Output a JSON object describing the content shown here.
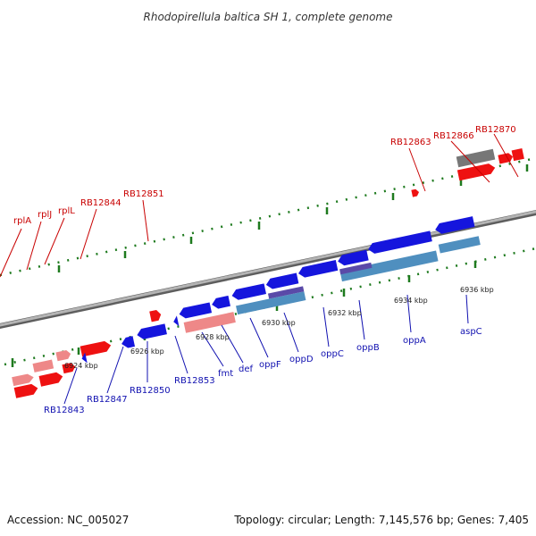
{
  "title": "Rhodopirellula baltica SH 1, complete genome",
  "footer": {
    "accession": "Accession: NC_005027",
    "topology": "Topology: circular; Length: 7,145,576 bp; Genes: 7,405"
  },
  "colors": {
    "backbone": "#8a8a8a",
    "ticks": "#1e7a1e",
    "top_label": "#c80000",
    "bottom_label": "#1010b0",
    "top_gene_red": "#ee1111",
    "top_gene_pink": "#ee8888",
    "top_gene_gray": "#666666",
    "bottom_gene_blue": "#1515dd",
    "bottom_gene_steel": "#4f8fbf",
    "bottom_gene_purple": "#5a4aa8",
    "bottom_gene_pink": "#ee8888"
  },
  "genes_top": [
    {
      "name": "rplA"
    },
    {
      "name": "rplJ"
    },
    {
      "name": "rplL"
    },
    {
      "name": "RB12844"
    },
    {
      "name": "RB12851"
    },
    {
      "name": "RB12863"
    },
    {
      "name": "RB12866"
    },
    {
      "name": "RB12870"
    }
  ],
  "genes_bottom": [
    {
      "name": "RB12843"
    },
    {
      "name": "RB12847"
    },
    {
      "name": "RB12850"
    },
    {
      "name": "RB12853"
    },
    {
      "name": "fmt"
    },
    {
      "name": "def"
    },
    {
      "name": "oppF"
    },
    {
      "name": "oppD"
    },
    {
      "name": "oppC"
    },
    {
      "name": "oppB"
    },
    {
      "name": "oppA"
    },
    {
      "name": "aspC"
    }
  ],
  "scale_ticks": [
    {
      "label": "6924 kbp"
    },
    {
      "label": "6926 kbp"
    },
    {
      "label": "6928 kbp"
    },
    {
      "label": "6930 kbp"
    },
    {
      "label": "6932 kbp"
    },
    {
      "label": "6934 kbp"
    },
    {
      "label": "6936 kbp"
    }
  ]
}
